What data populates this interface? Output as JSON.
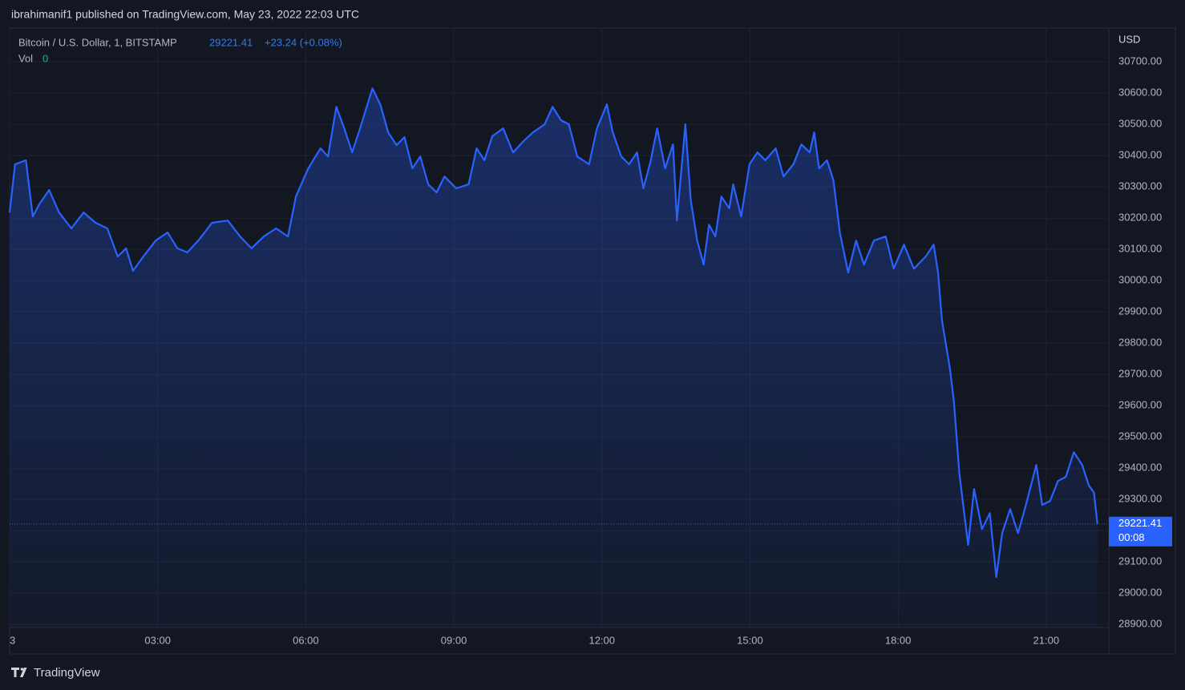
{
  "chart_data": {
    "type": "area",
    "published": "ibrahimanif1 published on TradingView.com, May 23, 2022 22:03 UTC",
    "symbol": "Bitcoin / U.S. Dollar, 1, BITSTAMP",
    "last_price": 29221.41,
    "change": "+23.24 (+0.08%)",
    "volume_label": "Vol",
    "volume_value": 0,
    "currency": "USD",
    "countdown": "00:08",
    "brand": "TradingView",
    "color": "#2962ff",
    "grid": true,
    "x": [
      0,
      0.11,
      0.33,
      0.41,
      0.47,
      0.6,
      0.8,
      1.0,
      1.25,
      1.5,
      1.74,
      1.98,
      2.19,
      2.36,
      2.5,
      2.71,
      2.96,
      3.2,
      3.4,
      3.6,
      3.85,
      4.1,
      4.42,
      4.67,
      4.9,
      5.15,
      5.4,
      5.64,
      5.8,
      6.05,
      6.3,
      6.45,
      6.62,
      6.78,
      6.94,
      7.1,
      7.35,
      7.51,
      7.67,
      7.84,
      8.0,
      8.16,
      8.32,
      8.48,
      8.65,
      8.81,
      9.05,
      9.3,
      9.46,
      9.62,
      9.78,
      10.0,
      10.2,
      10.43,
      10.6,
      10.84,
      11.0,
      11.17,
      11.33,
      11.5,
      11.74,
      11.9,
      12.1,
      12.22,
      12.39,
      12.55,
      12.71,
      12.84,
      12.99,
      13.12,
      13.28,
      13.44,
      13.52,
      13.69,
      13.8,
      13.93,
      14.06,
      14.17,
      14.3,
      14.42,
      14.58,
      14.66,
      14.82,
      14.99,
      15.15,
      15.31,
      15.52,
      15.68,
      15.88,
      16.04,
      16.21,
      16.3,
      16.4,
      16.56,
      16.69,
      16.82,
      16.99,
      17.15,
      17.31,
      17.51,
      17.75,
      17.91,
      18.12,
      18.32,
      18.56,
      18.72,
      18.81,
      18.89,
      19.05,
      19.13,
      19.24,
      19.34,
      19.42,
      19.54,
      19.7,
      19.86,
      19.99,
      20.11,
      20.27,
      20.43,
      20.59,
      20.8,
      20.92,
      21.08,
      21.24,
      21.4,
      21.56,
      21.73,
      21.86,
      21.97,
      22.04
    ],
    "values": [
      30218,
      30372,
      30385,
      30282,
      30205,
      30244,
      30290,
      30218,
      30167,
      30218,
      30185,
      30167,
      30077,
      30103,
      30031,
      30077,
      30128,
      30154,
      30103,
      30090,
      30133,
      30185,
      30192,
      30141,
      30103,
      30141,
      30167,
      30141,
      30269,
      30359,
      30423,
      30397,
      30556,
      30487,
      30410,
      30487,
      30615,
      30564,
      30474,
      30433,
      30459,
      30359,
      30397,
      30308,
      30282,
      30333,
      30295,
      30308,
      30423,
      30385,
      30462,
      30487,
      30410,
      30449,
      30474,
      30500,
      30556,
      30513,
      30500,
      30397,
      30372,
      30487,
      30564,
      30474,
      30397,
      30372,
      30410,
      30295,
      30385,
      30487,
      30359,
      30436,
      30192,
      30500,
      30256,
      30128,
      30051,
      30179,
      30141,
      30269,
      30231,
      30308,
      30205,
      30372,
      30410,
      30385,
      30423,
      30333,
      30372,
      30436,
      30410,
      30474,
      30359,
      30385,
      30321,
      30154,
      30026,
      30128,
      30051,
      30128,
      30141,
      30038,
      30115,
      30038,
      30077,
      30115,
      30026,
      29872,
      29718,
      29615,
      29385,
      29256,
      29154,
      29333,
      29205,
      29256,
      29051,
      29192,
      29269,
      29192,
      29282,
      29410,
      29282,
      29295,
      29359,
      29372,
      29451,
      29410,
      29346,
      29321,
      29221.41
    ],
    "xlim": [
      0,
      22.27
    ],
    "xticks": [
      {
        "value": 0,
        "label": "3"
      },
      {
        "value": 3,
        "label": "03:00"
      },
      {
        "value": 6,
        "label": "06:00"
      },
      {
        "value": 9,
        "label": "09:00"
      },
      {
        "value": 12,
        "label": "12:00"
      },
      {
        "value": 15,
        "label": "15:00"
      },
      {
        "value": 18,
        "label": "18:00"
      },
      {
        "value": 21,
        "label": "21:00"
      }
    ],
    "ylim": [
      28890,
      30808
    ],
    "yticks": [
      {
        "value": 28900,
        "label": "28900.00"
      },
      {
        "value": 29000,
        "label": "29000.00"
      },
      {
        "value": 29100,
        "label": "29100.00"
      },
      {
        "value": 29200,
        "label": "29200.00"
      },
      {
        "value": 29300,
        "label": "29300.00"
      },
      {
        "value": 29400,
        "label": "29400.00"
      },
      {
        "value": 29500,
        "label": "29500.00"
      },
      {
        "value": 29600,
        "label": "29600.00"
      },
      {
        "value": 29700,
        "label": "29700.00"
      },
      {
        "value": 29800,
        "label": "29800.00"
      },
      {
        "value": 29900,
        "label": "29900.00"
      },
      {
        "value": 30000,
        "label": "30000.00"
      },
      {
        "value": 30100,
        "label": "30100.00"
      },
      {
        "value": 30200,
        "label": "30200.00"
      },
      {
        "value": 30300,
        "label": "30300.00"
      },
      {
        "value": 30400,
        "label": "30400.00"
      },
      {
        "value": 30500,
        "label": "30500.00"
      },
      {
        "value": 30600,
        "label": "30600.00"
      },
      {
        "value": 30700,
        "label": "30700.00"
      }
    ]
  }
}
